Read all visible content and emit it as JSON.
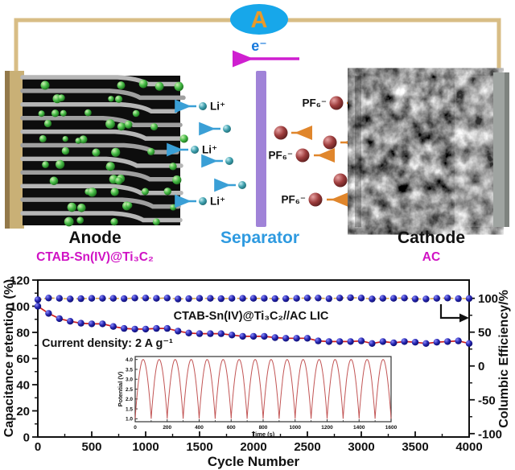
{
  "figure": {
    "diagram": {
      "ammeter": "A",
      "electron": "e⁻",
      "li_label": "Li⁺",
      "pf6_label": "PF₆⁻",
      "anode": {
        "title": "Anode",
        "material": "CTAB-Sn(IV)@Ti₃C₂"
      },
      "separator": {
        "title": "Separator"
      },
      "cathode": {
        "title": "Cathode",
        "material": "AC"
      },
      "colors": {
        "wire": "#d8bd85",
        "ammeter_fill": "#17a7ea",
        "ammeter_letter": "#e89a2a",
        "electron_text": "#1779dd",
        "electron_arrow": "#cf1fd0",
        "li_sphere": "#3fa0ae",
        "li_arrow": "#3a9fd6",
        "pf6_sphere": "#9e3d3d",
        "pf6_arrow": "#e0862c",
        "separator_fill": "#a083d8",
        "separator_text": "#2e9ae0",
        "material_text": "#d012c4",
        "anode_particle": "#44b944"
      }
    }
  },
  "chart_data": [
    {
      "type": "line",
      "xlabel": "Cycle Number",
      "ylabel_left": "Capacitance retention (%)",
      "ylabel_right": "Columbic Efficiency/%",
      "xlim": [
        0,
        4000
      ],
      "xticks": [
        0,
        500,
        1000,
        1500,
        2000,
        2500,
        3000,
        3500,
        4000
      ],
      "x_minor_step": 250,
      "ylim_left": [
        0,
        120
      ],
      "yticks_left": [
        0,
        20,
        40,
        60,
        80,
        100,
        120
      ],
      "y_left_minor_step": 10,
      "ylim_right": [
        -105,
        127
      ],
      "yticks_right": [
        100,
        50,
        0,
        -50,
        -100
      ],
      "y_right_minor_step": 25,
      "grid": false,
      "annotations": [
        "CTAB-Sn(IV)@Ti₃C₂//AC LIC",
        "Current density: 2 A g⁻¹"
      ],
      "marker_color": "#1b1b96",
      "x_step": 100,
      "series": [
        {
          "name": "Capacitance retention",
          "axis": "left",
          "style": "solid",
          "color": "#cc2020",
          "values": [
            100,
            94.5,
            90.5,
            88.5,
            87,
            86.5,
            86.5,
            84.5,
            83,
            82.5,
            82.5,
            83,
            83,
            81,
            79.5,
            79,
            79,
            79,
            78,
            77,
            77,
            77,
            76,
            75.5,
            75.5,
            75.5,
            73.5,
            73,
            73,
            73,
            73.5,
            71.5,
            73,
            72,
            73,
            72.5,
            71.5,
            72.5,
            73,
            73.5,
            71.5
          ]
        },
        {
          "name": "Columbic efficiency",
          "axis": "right",
          "style": "dashed",
          "color": "#d9a23f",
          "values": [
            98,
            100.5,
            100,
            99,
            99.5,
            100,
            100,
            100,
            99.5,
            100.5,
            100.5,
            100,
            100.5,
            99,
            99.5,
            100,
            100,
            99.5,
            100,
            100,
            100,
            100,
            99.5,
            99.5,
            100,
            100.5,
            100.5,
            99.5,
            100.5,
            101,
            100.5,
            99,
            100,
            100,
            100.5,
            99,
            99,
            100,
            100.5,
            99.5,
            99.8
          ]
        }
      ]
    },
    {
      "type": "line",
      "xlabel": "Time (s)",
      "ylabel": "Potential (V)",
      "xlim": [
        0,
        1600
      ],
      "xticks": [
        0,
        200,
        400,
        600,
        800,
        1000,
        1200,
        1400,
        1600
      ],
      "x_minor_step": 100,
      "ylim": [
        0.85,
        4.15
      ],
      "yticks": [
        1.0,
        1.5,
        2.0,
        2.5,
        3.0,
        3.5,
        4.0
      ],
      "line_color": "#c25555",
      "waveform": {
        "vmin": 1.0,
        "vmax": 4.0,
        "period_s": 100,
        "cycles": 16,
        "shape": "charge-discharge"
      }
    }
  ]
}
